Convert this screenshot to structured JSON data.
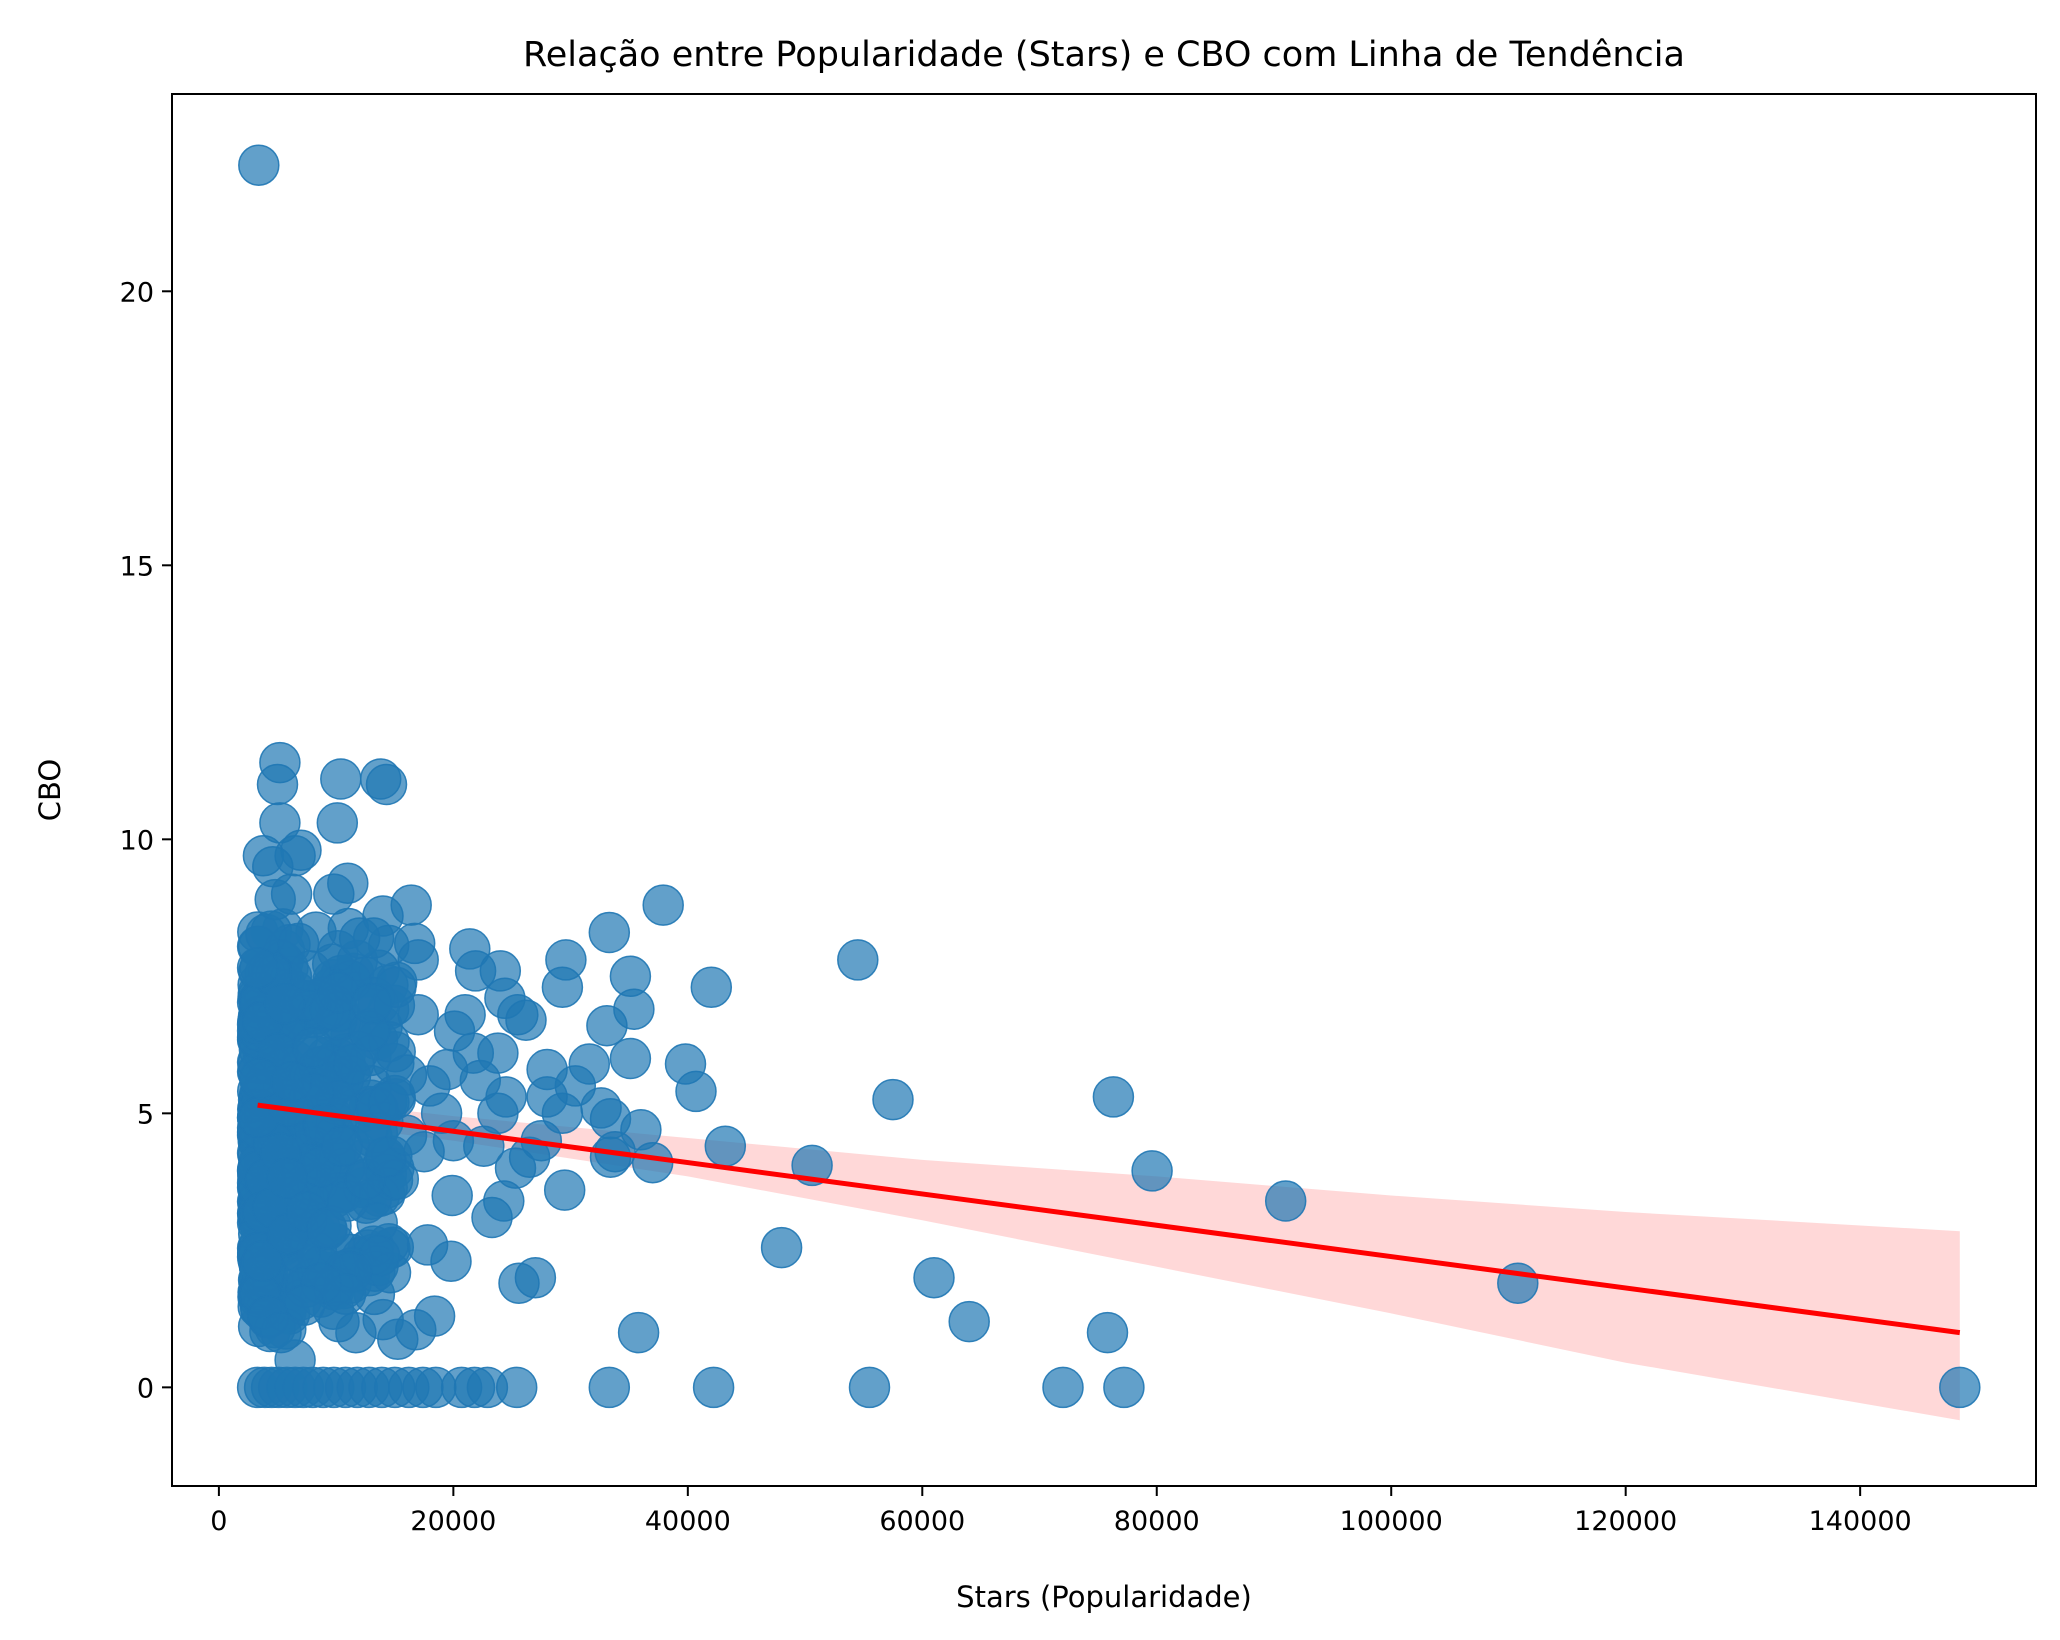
{
  "chart_data": {
    "type": "scatter",
    "title": "Relação entre Popularidade (Stars) e CBO com Linha de Tendência",
    "xlabel": "Stars (Popularidade)",
    "ylabel": "CBO",
    "xlim": [
      -4000,
      155000
    ],
    "ylim": [
      -1.8,
      23.6
    ],
    "xticks": [
      0,
      20000,
      40000,
      60000,
      80000,
      100000,
      120000,
      140000
    ],
    "xtick_labels": [
      "0",
      "20000",
      "40000",
      "60000",
      "80000",
      "100000",
      "120000",
      "140000"
    ],
    "yticks": [
      0,
      5,
      10,
      15,
      20
    ],
    "ytick_labels": [
      "0",
      "5",
      "10",
      "15",
      "20"
    ],
    "grid": false,
    "colors": {
      "points": "#1f77b4",
      "trend": "#ff0000",
      "band": "#ffd6d6"
    },
    "trend_line": {
      "x": [
        3300,
        148500
      ],
      "y": [
        5.15,
        1.0
      ]
    },
    "confidence_band": {
      "x": [
        3300,
        20000,
        40000,
        60000,
        80000,
        100000,
        120000,
        148500
      ],
      "lower": [
        4.95,
        4.5,
        3.85,
        3.05,
        2.2,
        1.35,
        0.45,
        -0.6
      ],
      "upper": [
        5.35,
        4.95,
        4.55,
        4.15,
        3.85,
        3.5,
        3.2,
        2.85
      ]
    },
    "points": [
      {
        "x": 3400,
        "y": 22.3
      },
      {
        "x": 5200,
        "y": 11.4
      },
      {
        "x": 5000,
        "y": 11.0
      },
      {
        "x": 5200,
        "y": 10.3
      },
      {
        "x": 3800,
        "y": 9.7
      },
      {
        "x": 6500,
        "y": 9.7
      },
      {
        "x": 7000,
        "y": 9.8
      },
      {
        "x": 10400,
        "y": 11.1
      },
      {
        "x": 13800,
        "y": 11.1
      },
      {
        "x": 14300,
        "y": 11.0
      },
      {
        "x": 10100,
        "y": 10.3
      },
      {
        "x": 11000,
        "y": 9.2
      },
      {
        "x": 9800,
        "y": 9.0
      },
      {
        "x": 16400,
        "y": 8.8
      },
      {
        "x": 14000,
        "y": 8.6
      },
      {
        "x": 13200,
        "y": 8.2
      },
      {
        "x": 12000,
        "y": 8.2
      },
      {
        "x": 16700,
        "y": 8.1
      },
      {
        "x": 17000,
        "y": 7.8
      },
      {
        "x": 21400,
        "y": 8.0
      },
      {
        "x": 21900,
        "y": 7.6
      },
      {
        "x": 24000,
        "y": 7.6
      },
      {
        "x": 29600,
        "y": 7.8
      },
      {
        "x": 29300,
        "y": 7.3
      },
      {
        "x": 33300,
        "y": 8.3
      },
      {
        "x": 35100,
        "y": 7.5
      },
      {
        "x": 37900,
        "y": 8.8
      },
      {
        "x": 42000,
        "y": 7.3
      },
      {
        "x": 54500,
        "y": 7.8
      },
      {
        "x": 35400,
        "y": 6.9
      },
      {
        "x": 33100,
        "y": 6.6
      },
      {
        "x": 24400,
        "y": 7.1
      },
      {
        "x": 25500,
        "y": 6.8
      },
      {
        "x": 26200,
        "y": 6.7
      },
      {
        "x": 21000,
        "y": 6.8
      },
      {
        "x": 17000,
        "y": 6.8
      },
      {
        "x": 15100,
        "y": 7.3
      },
      {
        "x": 20100,
        "y": 6.5
      },
      {
        "x": 21700,
        "y": 6.1
      },
      {
        "x": 23800,
        "y": 6.1
      },
      {
        "x": 35100,
        "y": 6.0
      },
      {
        "x": 39800,
        "y": 5.9
      },
      {
        "x": 40700,
        "y": 5.4
      },
      {
        "x": 28000,
        "y": 5.8
      },
      {
        "x": 31600,
        "y": 5.9
      },
      {
        "x": 30400,
        "y": 5.5
      },
      {
        "x": 32600,
        "y": 5.1
      },
      {
        "x": 33400,
        "y": 4.9
      },
      {
        "x": 29300,
        "y": 5.0
      },
      {
        "x": 28000,
        "y": 5.3
      },
      {
        "x": 24500,
        "y": 5.3
      },
      {
        "x": 23800,
        "y": 5.0
      },
      {
        "x": 22300,
        "y": 5.6
      },
      {
        "x": 19500,
        "y": 5.8
      },
      {
        "x": 18000,
        "y": 5.5
      },
      {
        "x": 16000,
        "y": 5.7
      },
      {
        "x": 36000,
        "y": 4.7
      },
      {
        "x": 43200,
        "y": 4.4
      },
      {
        "x": 33400,
        "y": 4.2
      },
      {
        "x": 37000,
        "y": 4.1
      },
      {
        "x": 33800,
        "y": 4.3
      },
      {
        "x": 27500,
        "y": 4.5
      },
      {
        "x": 26500,
        "y": 4.2
      },
      {
        "x": 25300,
        "y": 4.0
      },
      {
        "x": 24300,
        "y": 3.4
      },
      {
        "x": 23300,
        "y": 3.1
      },
      {
        "x": 29500,
        "y": 3.6
      },
      {
        "x": 19900,
        "y": 3.5
      },
      {
        "x": 22600,
        "y": 4.4
      },
      {
        "x": 20000,
        "y": 4.5
      },
      {
        "x": 15300,
        "y": 3.8
      },
      {
        "x": 13500,
        "y": 3.0
      },
      {
        "x": 17800,
        "y": 2.6
      },
      {
        "x": 19800,
        "y": 2.3
      },
      {
        "x": 13700,
        "y": 2.4
      },
      {
        "x": 11300,
        "y": 2.1
      },
      {
        "x": 10800,
        "y": 1.7
      },
      {
        "x": 8700,
        "y": 1.9
      },
      {
        "x": 7300,
        "y": 1.5
      },
      {
        "x": 18400,
        "y": 1.3
      },
      {
        "x": 16800,
        "y": 1.05
      },
      {
        "x": 25600,
        "y": 1.9
      },
      {
        "x": 27000,
        "y": 2.0
      },
      {
        "x": 6500,
        "y": 0.5
      },
      {
        "x": 50600,
        "y": 4.05
      },
      {
        "x": 57500,
        "y": 5.25
      },
      {
        "x": 76300,
        "y": 5.3
      },
      {
        "x": 79600,
        "y": 3.95
      },
      {
        "x": 91000,
        "y": 3.4
      },
      {
        "x": 48000,
        "y": 2.55
      },
      {
        "x": 61000,
        "y": 2.0
      },
      {
        "x": 64000,
        "y": 1.2
      },
      {
        "x": 75800,
        "y": 1.0
      },
      {
        "x": 110800,
        "y": 1.9
      },
      {
        "x": 35800,
        "y": 1.0
      },
      {
        "x": 148500,
        "y": 0.0
      },
      {
        "x": 3300,
        "y": 0
      },
      {
        "x": 3900,
        "y": 0
      },
      {
        "x": 4500,
        "y": 0
      },
      {
        "x": 5100,
        "y": 0
      },
      {
        "x": 5800,
        "y": 0
      },
      {
        "x": 6500,
        "y": 0
      },
      {
        "x": 7200,
        "y": 0
      },
      {
        "x": 8000,
        "y": 0
      },
      {
        "x": 8900,
        "y": 0
      },
      {
        "x": 9800,
        "y": 0
      },
      {
        "x": 10800,
        "y": 0
      },
      {
        "x": 11800,
        "y": 0
      },
      {
        "x": 12800,
        "y": 0
      },
      {
        "x": 13900,
        "y": 0
      },
      {
        "x": 15000,
        "y": 0
      },
      {
        "x": 16200,
        "y": 0
      },
      {
        "x": 17400,
        "y": 0
      },
      {
        "x": 18500,
        "y": 0
      },
      {
        "x": 20700,
        "y": 0
      },
      {
        "x": 21800,
        "y": 0
      },
      {
        "x": 22900,
        "y": 0
      },
      {
        "x": 25400,
        "y": 0
      },
      {
        "x": 33300,
        "y": 0
      },
      {
        "x": 42200,
        "y": 0
      },
      {
        "x": 55500,
        "y": 0
      },
      {
        "x": 72000,
        "y": 0
      },
      {
        "x": 77200,
        "y": 0
      },
      {
        "x": 3500,
        "y": 1.7
      },
      {
        "x": 4200,
        "y": 1.3
      },
      {
        "x": 5300,
        "y": 1.0
      },
      {
        "x": 3700,
        "y": 2.3
      },
      {
        "x": 5900,
        "y": 2.8
      },
      {
        "x": 7500,
        "y": 3.2
      },
      {
        "x": 9200,
        "y": 2.9
      },
      {
        "x": 11000,
        "y": 3.4
      },
      {
        "x": 12500,
        "y": 3.8
      },
      {
        "x": 14200,
        "y": 4.2
      },
      {
        "x": 16000,
        "y": 4.6
      },
      {
        "x": 17500,
        "y": 4.3
      },
      {
        "x": 19000,
        "y": 5.0
      },
      {
        "x": 8000,
        "y": 6.2
      },
      {
        "x": 9500,
        "y": 6.9
      },
      {
        "x": 11500,
        "y": 5.9
      },
      {
        "x": 12800,
        "y": 6.5
      },
      {
        "x": 14500,
        "y": 5.2
      },
      {
        "x": 6800,
        "y": 8.1
      },
      {
        "x": 7800,
        "y": 7.6
      },
      {
        "x": 4800,
        "y": 8.9
      },
      {
        "x": 6200,
        "y": 9.0
      },
      {
        "x": 10200,
        "y": 7.2
      },
      {
        "x": 13000,
        "y": 7.0
      },
      {
        "x": 4600,
        "y": 9.5
      },
      {
        "x": 5600,
        "y": 7.0
      },
      {
        "x": 9000,
        "y": 4.8
      },
      {
        "x": 10500,
        "y": 4.4
      }
    ]
  }
}
